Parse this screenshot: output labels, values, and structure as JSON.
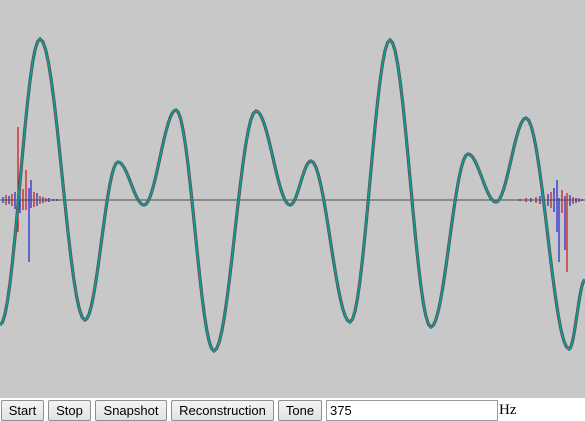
{
  "scope": {
    "background": "#c8c8c8",
    "baseline_color": "#4b4b4b",
    "signal_color": "#0f9b96",
    "signal_outline_color": "#555555",
    "spectrum_real_color": "#d01010",
    "spectrum_imag_color": "#2020d0"
  },
  "toolbar": {
    "start_label": "Start",
    "stop_label": "Stop",
    "snapshot_label": "Snapshot",
    "reconstruction_label": "Reconstruction",
    "tone_label": "Tone",
    "frequency_value": "375",
    "unit_label": "Hz"
  }
}
